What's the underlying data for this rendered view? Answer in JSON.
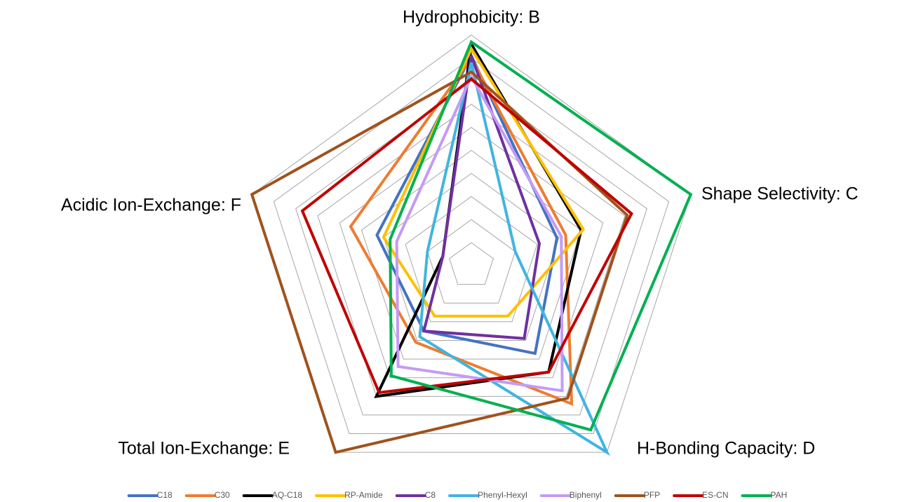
{
  "chart_data": {
    "type": "radar",
    "categories": [
      "Hydrophobicity: B",
      "Shape Selectivity: C",
      "H-Bonding Capacity: D",
      "Total Ion-Exchange: E",
      "Acidic Ion-Exchange: F"
    ],
    "ylim": [
      0,
      10
    ],
    "yticks": [
      1,
      2,
      3,
      4,
      5,
      6,
      7,
      8,
      9,
      10
    ],
    "grid": true,
    "legend": "bottom",
    "series": [
      {
        "name": "C18",
        "color": "#4472c4",
        "values": [
          9.1,
          3.9,
          4.7,
          3.5,
          4.3
        ]
      },
      {
        "name": "C30",
        "color": "#ed7d31",
        "values": [
          9.0,
          4.3,
          7.4,
          4.1,
          5.5
        ]
      },
      {
        "name": "AQ-C18",
        "color": "#000000",
        "values": [
          9.6,
          5.0,
          5.7,
          7.0,
          1.3
        ]
      },
      {
        "name": "RP-Amide",
        "color": "#ffc000",
        "values": [
          9.4,
          5.1,
          2.7,
          2.7,
          4.0
        ]
      },
      {
        "name": "C8",
        "color": "#7030a0",
        "values": [
          9.1,
          3.1,
          3.9,
          3.5,
          1.3
        ]
      },
      {
        "name": "Phenyl-Hexyl",
        "color": "#41b4e0",
        "values": [
          8.8,
          2.0,
          10,
          3.8,
          2.0
        ]
      },
      {
        "name": "Biphenyl",
        "color": "#c39bf5",
        "values": [
          8.2,
          4.1,
          6.7,
          5.4,
          3.4
        ]
      },
      {
        "name": "PFP",
        "color": "#a0521d",
        "values": [
          8.4,
          7.1,
          7.1,
          10,
          10
        ]
      },
      {
        "name": "ES-CN",
        "color": "#c00000",
        "values": [
          8.1,
          7.3,
          5.7,
          6.8,
          7.7
        ]
      },
      {
        "name": "PAH",
        "color": "#00b050",
        "values": [
          9.7,
          10,
          8.8,
          5.9,
          3.7
        ]
      }
    ]
  }
}
